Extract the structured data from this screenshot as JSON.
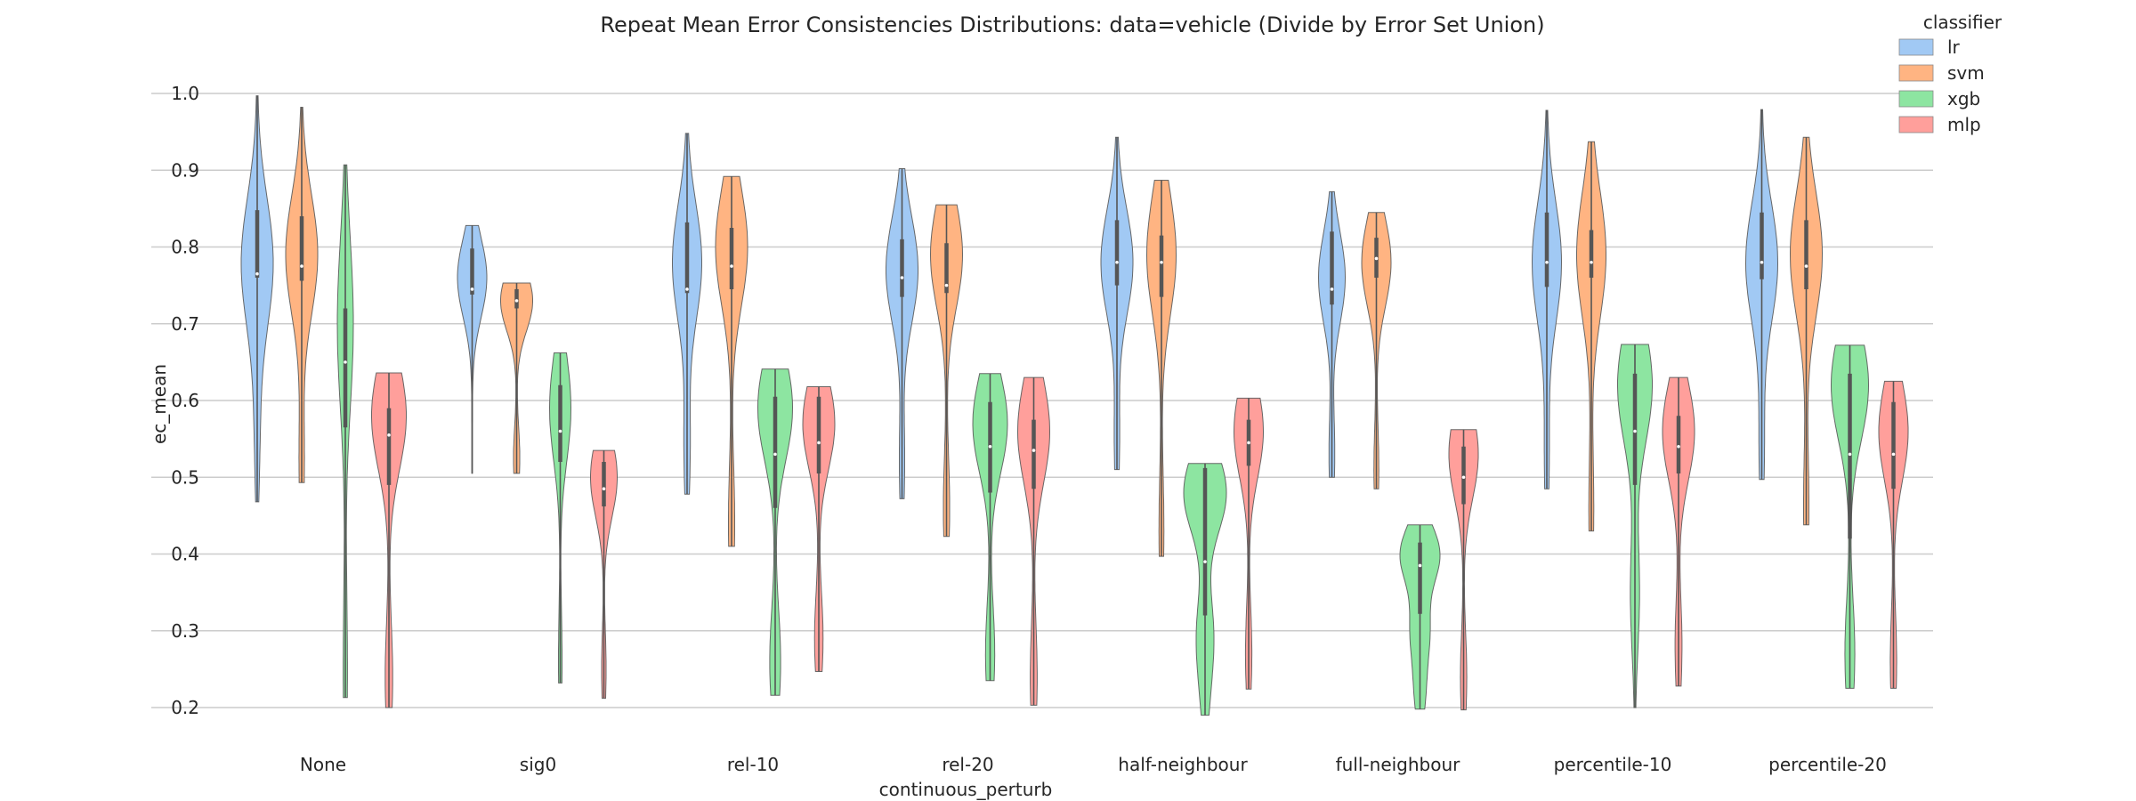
{
  "chart_data": {
    "type": "violin",
    "title": "Repeat Mean Error Consistencies Distributions: data=vehicle (Divide by Error Set Union)",
    "xlabel": "continuous_perturb",
    "ylabel": "ec_mean",
    "ylim": [
      0.185,
      1.01
    ],
    "yticks": [
      "0.2",
      "0.3",
      "0.4",
      "0.5",
      "0.6",
      "0.7",
      "0.8",
      "0.9",
      "1.0"
    ],
    "grid": "horizontal",
    "legend": {
      "title": "classifier",
      "placement": "top-right",
      "entries": [
        "lr",
        "svm",
        "xgb",
        "mlp"
      ]
    },
    "colors": {
      "lr": "#a1c9f4",
      "svm": "#ffb482",
      "xgb": "#8de5a1",
      "mlp": "#ff9f9b"
    },
    "categories": [
      "None",
      "sig0",
      "rel-10",
      "rel-20",
      "half-neighbour",
      "full-neighbour",
      "percentile-10",
      "percentile-20"
    ],
    "series": [
      {
        "name": "lr",
        "violins": [
          {
            "min": 0.468,
            "max": 0.997,
            "q1": 0.76,
            "median": 0.765,
            "q3": 0.848,
            "width": 0.6,
            "peaks": [
              [
                0.78,
                1.0
              ],
              [
                0.56,
                0.15
              ]
            ]
          },
          {
            "min": 0.505,
            "max": 0.828,
            "q1": 0.738,
            "median": 0.745,
            "q3": 0.798,
            "width": 0.55,
            "peaks": [
              [
                0.76,
                1.0
              ]
            ]
          },
          {
            "min": 0.478,
            "max": 0.948,
            "q1": 0.74,
            "median": 0.745,
            "q3": 0.832,
            "width": 0.55,
            "peaks": [
              [
                0.78,
                1.0
              ],
              [
                0.54,
                0.2
              ]
            ]
          },
          {
            "min": 0.472,
            "max": 0.902,
            "q1": 0.735,
            "median": 0.76,
            "q3": 0.81,
            "width": 0.6,
            "peaks": [
              [
                0.77,
                1.0
              ],
              [
                0.52,
                0.15
              ]
            ]
          },
          {
            "min": 0.51,
            "max": 0.943,
            "q1": 0.75,
            "median": 0.78,
            "q3": 0.835,
            "width": 0.6,
            "peaks": [
              [
                0.78,
                1.0
              ],
              [
                0.55,
                0.15
              ]
            ]
          },
          {
            "min": 0.5,
            "max": 0.872,
            "q1": 0.725,
            "median": 0.745,
            "q3": 0.82,
            "width": 0.5,
            "peaks": [
              [
                0.76,
                1.0
              ],
              [
                0.53,
                0.2
              ]
            ]
          },
          {
            "min": 0.485,
            "max": 0.978,
            "q1": 0.748,
            "median": 0.78,
            "q3": 0.845,
            "width": 0.55,
            "peaks": [
              [
                0.78,
                1.0
              ],
              [
                0.53,
                0.15
              ]
            ]
          },
          {
            "min": 0.497,
            "max": 0.979,
            "q1": 0.758,
            "median": 0.78,
            "q3": 0.845,
            "width": 0.6,
            "peaks": [
              [
                0.78,
                1.0
              ],
              [
                0.54,
                0.15
              ]
            ]
          }
        ]
      },
      {
        "name": "svm",
        "violins": [
          {
            "min": 0.493,
            "max": 0.982,
            "q1": 0.756,
            "median": 0.775,
            "q3": 0.84,
            "width": 0.6,
            "peaks": [
              [
                0.79,
                1.0
              ],
              [
                0.52,
                0.15
              ]
            ]
          },
          {
            "min": 0.505,
            "max": 0.753,
            "q1": 0.72,
            "median": 0.73,
            "q3": 0.745,
            "width": 0.6,
            "peaks": [
              [
                0.73,
                1.0
              ],
              [
                0.525,
                0.18
              ]
            ]
          },
          {
            "min": 0.41,
            "max": 0.892,
            "q1": 0.745,
            "median": 0.775,
            "q3": 0.825,
            "width": 0.6,
            "peaks": [
              [
                0.8,
                1.0
              ],
              [
                0.44,
                0.18
              ]
            ]
          },
          {
            "min": 0.423,
            "max": 0.855,
            "q1": 0.74,
            "median": 0.75,
            "q3": 0.805,
            "width": 0.6,
            "peaks": [
              [
                0.79,
                1.0
              ],
              [
                0.46,
                0.18
              ]
            ]
          },
          {
            "min": 0.397,
            "max": 0.887,
            "q1": 0.735,
            "median": 0.78,
            "q3": 0.815,
            "width": 0.55,
            "peaks": [
              [
                0.79,
                1.0
              ],
              [
                0.43,
                0.15
              ]
            ]
          },
          {
            "min": 0.485,
            "max": 0.845,
            "q1": 0.76,
            "median": 0.785,
            "q3": 0.812,
            "width": 0.55,
            "peaks": [
              [
                0.78,
                1.0
              ],
              [
                0.51,
                0.15
              ]
            ]
          },
          {
            "min": 0.43,
            "max": 0.937,
            "q1": 0.76,
            "median": 0.78,
            "q3": 0.822,
            "width": 0.55,
            "peaks": [
              [
                0.79,
                1.0
              ],
              [
                0.46,
                0.15
              ]
            ]
          },
          {
            "min": 0.438,
            "max": 0.943,
            "q1": 0.745,
            "median": 0.775,
            "q3": 0.835,
            "width": 0.6,
            "peaks": [
              [
                0.79,
                1.0
              ],
              [
                0.46,
                0.15
              ]
            ]
          }
        ]
      },
      {
        "name": "xgb",
        "violins": [
          {
            "min": 0.213,
            "max": 0.907,
            "q1": 0.565,
            "median": 0.65,
            "q3": 0.72,
            "width": 0.3,
            "peaks": [
              [
                0.7,
                1.0
              ],
              [
                0.25,
                0.25
              ]
            ]
          },
          {
            "min": 0.232,
            "max": 0.662,
            "q1": 0.52,
            "median": 0.56,
            "q3": 0.62,
            "width": 0.4,
            "peaks": [
              [
                0.59,
                1.0
              ],
              [
                0.26,
                0.15
              ]
            ]
          },
          {
            "min": 0.216,
            "max": 0.641,
            "q1": 0.46,
            "median": 0.53,
            "q3": 0.605,
            "width": 0.65,
            "peaks": [
              [
                0.59,
                1.0
              ],
              [
                0.26,
                0.3
              ]
            ]
          },
          {
            "min": 0.235,
            "max": 0.635,
            "q1": 0.48,
            "median": 0.54,
            "q3": 0.598,
            "width": 0.65,
            "peaks": [
              [
                0.57,
                1.0
              ],
              [
                0.27,
                0.25
              ]
            ]
          },
          {
            "min": 0.19,
            "max": 0.518,
            "q1": 0.32,
            "median": 0.39,
            "q3": 0.512,
            "width": 0.8,
            "peaks": [
              [
                0.48,
                1.0
              ],
              [
                0.3,
                0.35
              ],
              [
                0.22,
                0.15
              ]
            ]
          },
          {
            "min": 0.198,
            "max": 0.438,
            "q1": 0.322,
            "median": 0.385,
            "q3": 0.415,
            "width": 0.75,
            "peaks": [
              [
                0.4,
                1.0
              ],
              [
                0.3,
                0.45
              ],
              [
                0.22,
                0.25
              ]
            ]
          },
          {
            "min": 0.2,
            "max": 0.673,
            "q1": 0.49,
            "median": 0.56,
            "q3": 0.635,
            "width": 0.65,
            "peaks": [
              [
                0.62,
                1.0
              ],
              [
                0.35,
                0.25
              ]
            ]
          },
          {
            "min": 0.225,
            "max": 0.672,
            "q1": 0.42,
            "median": 0.53,
            "q3": 0.635,
            "width": 0.7,
            "peaks": [
              [
                0.62,
                1.0
              ],
              [
                0.27,
                0.25
              ]
            ]
          }
        ]
      },
      {
        "name": "mlp",
        "violins": [
          {
            "min": 0.2,
            "max": 0.636,
            "q1": 0.49,
            "median": 0.555,
            "q3": 0.59,
            "width": 0.65,
            "peaks": [
              [
                0.58,
                1.0
              ],
              [
                0.24,
                0.2
              ]
            ]
          },
          {
            "min": 0.212,
            "max": 0.535,
            "q1": 0.462,
            "median": 0.485,
            "q3": 0.52,
            "width": 0.5,
            "peaks": [
              [
                0.5,
                1.0
              ],
              [
                0.25,
                0.15
              ]
            ]
          },
          {
            "min": 0.247,
            "max": 0.618,
            "q1": 0.505,
            "median": 0.545,
            "q3": 0.605,
            "width": 0.6,
            "peaks": [
              [
                0.57,
                1.0
              ],
              [
                0.29,
                0.25
              ]
            ]
          },
          {
            "min": 0.203,
            "max": 0.63,
            "q1": 0.485,
            "median": 0.535,
            "q3": 0.575,
            "width": 0.6,
            "peaks": [
              [
                0.56,
                1.0
              ],
              [
                0.24,
                0.2
              ]
            ]
          },
          {
            "min": 0.224,
            "max": 0.603,
            "q1": 0.515,
            "median": 0.545,
            "q3": 0.575,
            "width": 0.55,
            "peaks": [
              [
                0.56,
                1.0
              ],
              [
                0.27,
                0.2
              ]
            ]
          },
          {
            "min": 0.197,
            "max": 0.562,
            "q1": 0.465,
            "median": 0.5,
            "q3": 0.54,
            "width": 0.55,
            "peaks": [
              [
                0.53,
                1.0
              ],
              [
                0.24,
                0.2
              ]
            ]
          },
          {
            "min": 0.228,
            "max": 0.63,
            "q1": 0.505,
            "median": 0.54,
            "q3": 0.58,
            "width": 0.6,
            "peaks": [
              [
                0.56,
                1.0
              ],
              [
                0.28,
                0.2
              ]
            ]
          },
          {
            "min": 0.225,
            "max": 0.625,
            "q1": 0.485,
            "median": 0.53,
            "q3": 0.598,
            "width": 0.55,
            "peaks": [
              [
                0.56,
                1.0
              ],
              [
                0.26,
                0.2
              ]
            ]
          }
        ]
      }
    ]
  }
}
